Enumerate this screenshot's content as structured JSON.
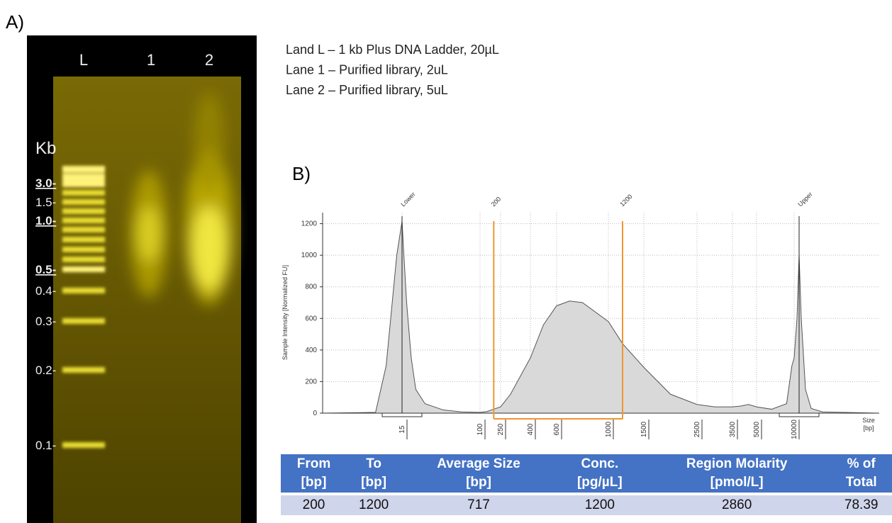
{
  "panel_a": {
    "label": "A)",
    "lanes": [
      "L",
      "1",
      "2"
    ],
    "size_unit": "Kb",
    "ladder_labels": [
      {
        "text": "3.0-",
        "bold": true
      },
      {
        "text": "1.5-",
        "bold": false
      },
      {
        "text": "1.0-",
        "bold": true
      },
      {
        "text": "0.5-",
        "bold": true
      },
      {
        "text": "0.4-",
        "bold": false
      },
      {
        "text": "0.3-",
        "bold": false
      },
      {
        "text": "0.2-",
        "bold": false
      },
      {
        "text": "0.1-",
        "bold": false
      }
    ],
    "legend": [
      "Land L – 1 kb Plus DNA Ladder, 20µL",
      "Lane 1 – Purified library, 2uL",
      "Lane 2 – Purified library, 5uL"
    ]
  },
  "panel_b": {
    "label": "B)"
  },
  "chart_data": {
    "type": "line",
    "ylabel": "Sample Intensity [Normalized FU]",
    "xlabel": [
      "Size",
      "[bp]"
    ],
    "x": [
      0,
      10,
      12,
      14,
      15,
      17,
      20,
      25,
      30,
      40,
      60,
      80,
      100,
      150,
      250,
      300,
      400,
      500,
      600,
      700,
      800,
      1000,
      1200,
      1500,
      2000,
      2500,
      3000,
      3500,
      4000,
      4500,
      5000,
      7000,
      9000,
      9700,
      10000,
      10200,
      10350,
      10500,
      10800,
      11200,
      12000,
      16000
    ],
    "values": [
      0,
      5,
      300,
      1000,
      1215,
      1000,
      700,
      350,
      150,
      60,
      20,
      8,
      5,
      10,
      40,
      120,
      350,
      560,
      680,
      710,
      700,
      580,
      440,
      290,
      120,
      55,
      40,
      40,
      45,
      55,
      40,
      25,
      60,
      300,
      350,
      600,
      1000,
      600,
      150,
      30,
      8,
      0
    ],
    "color": "#555555",
    "fill": "#d9d9d9",
    "xlim": [
      0,
      16000
    ],
    "xticks": [
      15,
      100,
      250,
      400,
      600,
      1000,
      1500,
      2500,
      3500,
      5000,
      10000
    ],
    "ylim": [
      0,
      1270
    ],
    "yticks": [
      0,
      200,
      400,
      600,
      800,
      1000,
      1200
    ],
    "grid": true,
    "peaks": [
      {
        "label": "Lower",
        "x": 15
      },
      {
        "label": "Upper",
        "x": 10350
      }
    ],
    "region": {
      "from": 200,
      "to": 1200,
      "color": "#f0962f"
    }
  },
  "table": {
    "header": [
      [
        "From",
        "[bp]"
      ],
      [
        "To",
        "[bp]"
      ],
      [
        "Average Size",
        "[bp]"
      ],
      [
        "Conc.",
        "[pg/µL]"
      ],
      [
        "Region Molarity",
        "[pmol/L]"
      ],
      [
        "% of",
        "Total"
      ]
    ],
    "rows": [
      [
        "200",
        "1200",
        "717",
        "1200",
        "2860",
        "78.39"
      ]
    ]
  }
}
